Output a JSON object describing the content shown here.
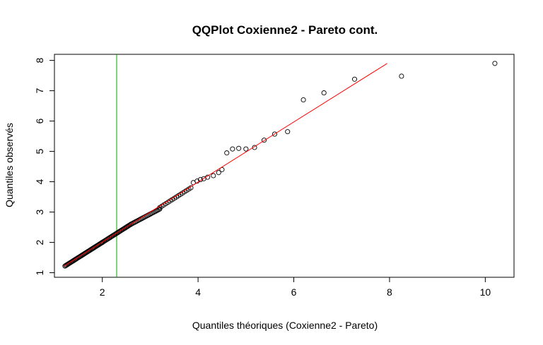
{
  "chart_data": {
    "type": "scatter",
    "title": "QQPlot Coxienne2 - Pareto cont.",
    "xlabel": "Quantiles théoriques (Coxienne2 - Pareto)",
    "ylabel": "Quantiles observés",
    "xlim": [
      1.0,
      10.6
    ],
    "ylim": [
      0.85,
      8.2
    ],
    "x_ticks": [
      2,
      4,
      6,
      8,
      10
    ],
    "y_ticks": [
      1,
      2,
      3,
      4,
      5,
      6,
      7,
      8
    ],
    "grid": false,
    "legend": "none",
    "colors": {
      "points": "#000000",
      "reference_line": "#ff0000",
      "vertical_line": "#00aa00",
      "axes": "#000000"
    },
    "reference_line": {
      "x": [
        1.2,
        7.95
      ],
      "y": [
        1.22,
        7.9
      ]
    },
    "vertical_line_x": 2.3,
    "dense_segments": [
      {
        "from": [
          1.22,
          1.22
        ],
        "to": [
          2.0,
          2.0
        ],
        "n": 45
      },
      {
        "from": [
          2.0,
          2.0
        ],
        "to": [
          2.6,
          2.6
        ],
        "n": 30
      },
      {
        "from": [
          2.6,
          2.6
        ],
        "to": [
          3.2,
          3.1
        ],
        "n": 25
      },
      {
        "from": [
          3.2,
          3.15
        ],
        "to": [
          3.85,
          3.8
        ],
        "n": 16
      }
    ],
    "points": {
      "x": [
        3.9,
        3.98,
        4.05,
        4.12,
        4.2,
        4.32,
        4.43,
        4.5,
        4.6,
        4.72,
        4.85,
        5.0,
        5.18,
        5.38,
        5.6,
        5.87,
        6.2,
        6.63,
        7.27,
        8.25,
        10.2
      ],
      "y": [
        3.97,
        4.02,
        4.07,
        4.1,
        4.15,
        4.2,
        4.3,
        4.4,
        4.95,
        5.08,
        5.1,
        5.08,
        5.13,
        5.37,
        5.57,
        5.65,
        6.7,
        6.93,
        7.38,
        7.48,
        7.9
      ]
    }
  }
}
